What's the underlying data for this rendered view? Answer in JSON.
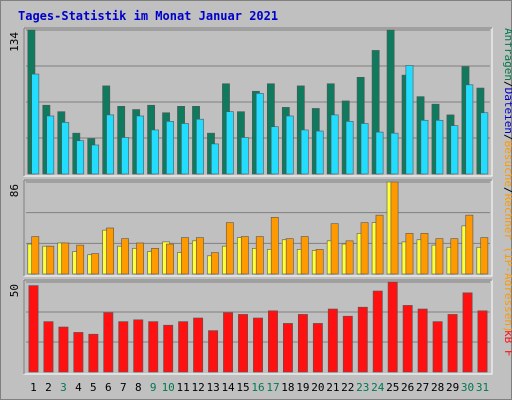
{
  "chart_data": {
    "type": "bar",
    "title": "Tages-Statistik im Monat Januar 2021",
    "categories": [
      "1",
      "2",
      "3",
      "4",
      "5",
      "6",
      "7",
      "8",
      "9",
      "10",
      "11",
      "12",
      "13",
      "14",
      "15",
      "16",
      "17",
      "18",
      "19",
      "20",
      "21",
      "22",
      "23",
      "24",
      "25",
      "26",
      "27",
      "28",
      "29",
      "30",
      "31"
    ],
    "weekend_days": [
      "3",
      "9",
      "10",
      "16",
      "17",
      "23",
      "24",
      "30",
      "31"
    ],
    "panels": [
      {
        "name": "top",
        "ymax_label": "134",
        "ylim": [
          0,
          134
        ],
        "series": [
          {
            "name": "Anfragen",
            "color": "#107a5e",
            "values": [
              134,
              64,
              58,
              38,
              33,
              82,
              63,
              60,
              64,
              57,
              63,
              63,
              38,
              84,
              58,
              77,
              84,
              62,
              82,
              61,
              84,
              68,
              90,
              115,
              134,
              92,
              72,
              65,
              55,
              100,
              80
            ]
          },
          {
            "name": "Dateien",
            "color": "#22ddff",
            "values": [
              93,
              54,
              48,
              31,
              27,
              55,
              34,
              54,
              41,
              49,
              47,
              51,
              28,
              58,
              34,
              75,
              44,
              54,
              41,
              40,
              55,
              49,
              47,
              39,
              38,
              101,
              50,
              50,
              45,
              83,
              57
            ]
          }
        ]
      },
      {
        "name": "middle",
        "ymax_label": "86",
        "ylim": [
          0,
          86
        ],
        "series": [
          {
            "name": "Rechner (IP-Adressen)",
            "color": "#ffff33",
            "values": [
              28,
              26,
              29,
              21,
              18,
              41,
              26,
              24,
              21,
              30,
              20,
              31,
              17,
              26,
              34,
              24,
              23,
              32,
              23,
              22,
              31,
              28,
              38,
              48,
              86,
              30,
              32,
              27,
              25,
              45,
              25
            ]
          },
          {
            "name": "Besuche",
            "color": "#ff9900",
            "values": [
              35,
              26,
              29,
              27,
              19,
              43,
              33,
              29,
              24,
              28,
              34,
              34,
              20,
              48,
              35,
              35,
              53,
              33,
              35,
              23,
              47,
              31,
              48,
              55,
              86,
              38,
              38,
              33,
              33,
              55,
              34
            ]
          }
        ]
      },
      {
        "name": "bottom",
        "ymax_label": "50",
        "ylim": [
          0,
          50
        ],
        "series": [
          {
            "name": "kB F",
            "color": "#ff1111",
            "values": [
              48,
              28,
              25,
              22,
              21,
              33,
              28,
              29,
              28,
              26,
              28,
              30,
              23,
              33,
              32,
              30,
              34,
              27,
              32,
              27,
              35,
              31,
              36,
              45,
              50,
              37,
              35,
              28,
              32,
              44,
              34
            ]
          }
        ]
      }
    ],
    "right_label": {
      "part1": "Anfragen",
      "sep1": "/",
      "part2": "Dateien",
      "sep2": "/",
      "part3": "Besuche",
      "sep3": "/",
      "part4": "Rechner (IP-Adressen)",
      "part5": "kB F"
    },
    "colors": {
      "background": "#c0c0c0",
      "title": "#0000cc",
      "grid": "#808080",
      "weekend_label": "#007a4d",
      "weekday_label": "#000000"
    }
  }
}
